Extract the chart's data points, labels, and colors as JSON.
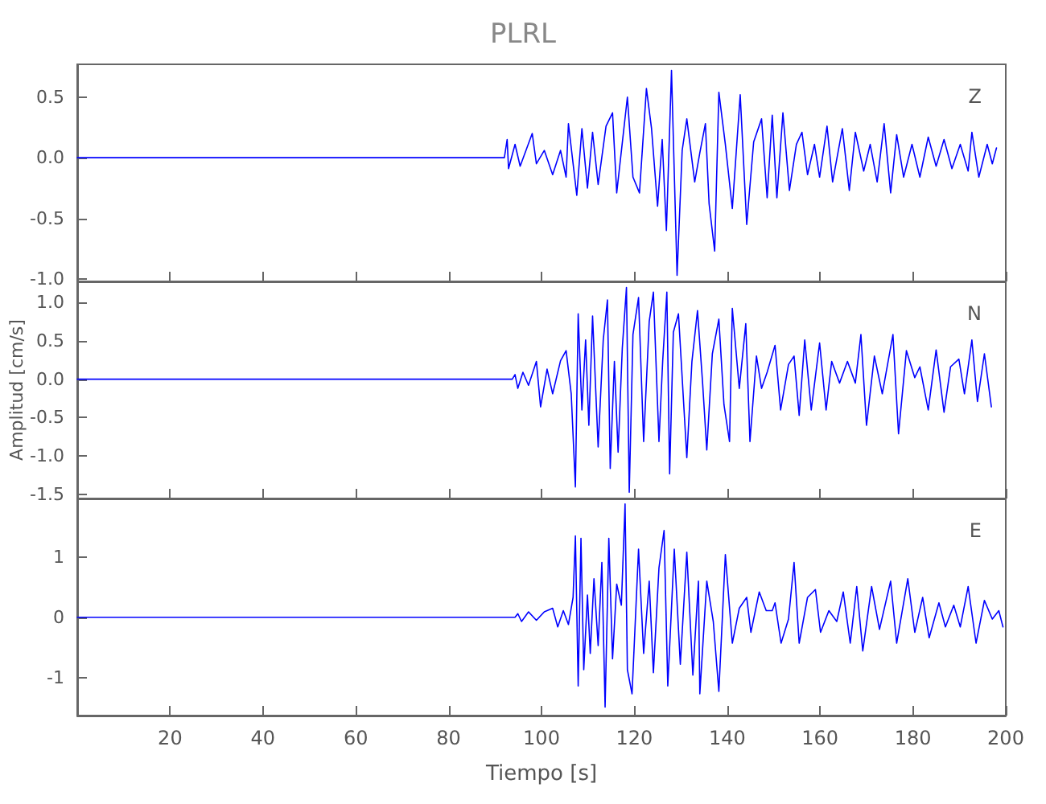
{
  "chart_data": [
    {
      "type": "line",
      "title": "PLRL",
      "annotations": [
        "Z"
      ],
      "marker": "none",
      "line_style": "solid",
      "grid": false,
      "tick_labels": "y",
      "xlim": [
        0,
        200
      ],
      "xticks": [
        20,
        40,
        60,
        80,
        100,
        120,
        140,
        160,
        180,
        200
      ],
      "ylim": [
        -1.02,
        0.77
      ],
      "yticks": [
        {
          "value": -1,
          "label": "-1.0"
        },
        -0.5,
        {
          "value": 0,
          "label": "0.0"
        },
        0.5
      ],
      "x": [
        0,
        20,
        40,
        60,
        80,
        92,
        92.6,
        92.9,
        94.3,
        95.4,
        98.0,
        98.9,
        100.6,
        102.4,
        104.1,
        105.3,
        105.8,
        107.6,
        108.7,
        109.9,
        111.0,
        112.2,
        113.9,
        115.3,
        116.2,
        118.5,
        119.7,
        121.1,
        122.6,
        123.7,
        125.0,
        126.0,
        126.9,
        128.0,
        129.2,
        130.3,
        131.3,
        133.0,
        134.1,
        135.3,
        136.1,
        137.3,
        138.2,
        139.6,
        141.1,
        142.8,
        144.2,
        145.7,
        147.4,
        148.6,
        149.7,
        150.7,
        152.0,
        153.4,
        154.9,
        156.1,
        157.3,
        158.8,
        159.9,
        161.5,
        162.7,
        164.8,
        166.3,
        167.6,
        169.4,
        170.8,
        172.3,
        173.8,
        175.2,
        176.5,
        178.0,
        179.8,
        181.5,
        183.3,
        185.0,
        186.7,
        188.4,
        190.2,
        191.9,
        192.7,
        194.2,
        196.0,
        197.1,
        198.0
      ],
      "series": [
        {
          "color": "#0000ff",
          "values": [
            0,
            0,
            0,
            0,
            0,
            0,
            0.15,
            -0.09,
            0.11,
            -0.07,
            0.2,
            -0.05,
            0.06,
            -0.14,
            0.06,
            -0.16,
            0.28,
            -0.31,
            0.24,
            -0.25,
            0.21,
            -0.22,
            0.26,
            0.37,
            -0.29,
            0.5,
            -0.16,
            -0.29,
            0.57,
            0.24,
            -0.4,
            0.15,
            -0.6,
            0.72,
            -0.97,
            0.06,
            0.32,
            -0.2,
            0.04,
            0.28,
            -0.38,
            -0.77,
            0.54,
            0.11,
            -0.42,
            0.52,
            -0.55,
            0.13,
            0.32,
            -0.33,
            0.35,
            -0.33,
            0.37,
            -0.27,
            0.11,
            0.21,
            -0.14,
            0.11,
            -0.16,
            0.26,
            -0.2,
            0.24,
            -0.27,
            0.21,
            -0.11,
            0.11,
            -0.2,
            0.28,
            -0.29,
            0.19,
            -0.16,
            0.11,
            -0.16,
            0.17,
            -0.07,
            0.15,
            -0.09,
            0.11,
            -0.11,
            0.21,
            -0.16,
            0.11,
            -0.05,
            0.08
          ]
        }
      ]
    },
    {
      "type": "line",
      "ylabel": "Amplitud [cm/s]",
      "annotations": [
        "N"
      ],
      "marker": "none",
      "line_style": "solid",
      "grid": false,
      "tick_labels": "y",
      "xlim": [
        0,
        200
      ],
      "xticks": [
        20,
        40,
        60,
        80,
        100,
        120,
        140,
        160,
        180,
        200
      ],
      "ylim": [
        -1.55,
        1.27
      ],
      "yticks": [
        -1.5,
        {
          "value": -1,
          "label": "-1.0"
        },
        -0.5,
        {
          "value": 0,
          "label": "0.0"
        },
        0.5,
        {
          "value": 1,
          "label": "1.0"
        }
      ],
      "x": [
        0,
        20,
        40,
        60,
        80,
        93.7,
        94.3,
        94.9,
        96.0,
        97.2,
        98.9,
        99.8,
        101.2,
        102.4,
        104.1,
        105.3,
        106.4,
        107.3,
        107.9,
        108.7,
        109.5,
        110.2,
        111.0,
        112.2,
        113.3,
        114.2,
        114.8,
        115.7,
        116.5,
        117.4,
        118.3,
        118.9,
        119.7,
        120.9,
        122.0,
        123.2,
        124.1,
        125.3,
        126.1,
        127.0,
        127.6,
        128.4,
        129.5,
        131.3,
        132.4,
        133.6,
        134.7,
        135.6,
        136.8,
        138.2,
        139.3,
        140.5,
        141.1,
        142.6,
        144.0,
        144.9,
        146.3,
        147.4,
        148.6,
        150.3,
        151.5,
        153.2,
        154.4,
        155.5,
        156.7,
        158.1,
        159.9,
        161.3,
        162.5,
        164.2,
        165.9,
        167.6,
        168.8,
        170.0,
        171.7,
        173.4,
        175.7,
        176.9,
        178.6,
        180.4,
        181.5,
        183.3,
        185.0,
        186.7,
        188.1,
        189.9,
        191.1,
        192.7,
        193.9,
        195.4,
        196.9
      ],
      "series": [
        {
          "color": "#0000ff",
          "values": [
            0,
            0,
            0,
            0,
            0,
            0,
            0.06,
            -0.12,
            0.09,
            -0.08,
            0.23,
            -0.36,
            0.13,
            -0.19,
            0.24,
            0.37,
            -0.19,
            -1.4,
            0.85,
            -0.4,
            0.51,
            -0.6,
            0.82,
            -0.88,
            0.51,
            1.03,
            -1.16,
            0.23,
            -0.95,
            0.4,
            1.19,
            -1.47,
            0.58,
            1.06,
            -0.81,
            0.75,
            1.13,
            -0.81,
            0.23,
            1.13,
            -1.23,
            0.61,
            0.85,
            -1.02,
            0.23,
            0.89,
            -0.05,
            -0.92,
            0.33,
            0.78,
            -0.33,
            -0.81,
            0.92,
            -0.12,
            0.72,
            -0.81,
            0.3,
            -0.12,
            0.09,
            0.44,
            -0.4,
            0.19,
            0.3,
            -0.47,
            0.51,
            -0.4,
            0.47,
            -0.4,
            0.23,
            -0.05,
            0.23,
            -0.05,
            0.58,
            -0.6,
            0.3,
            -0.19,
            0.58,
            -0.71,
            0.37,
            0.02,
            0.16,
            -0.4,
            0.38,
            -0.43,
            0.16,
            0.26,
            -0.19,
            0.51,
            -0.29,
            0.33,
            -0.36
          ]
        }
      ]
    },
    {
      "type": "line",
      "xlabel": "Tiempo [s]",
      "annotations": [
        "E"
      ],
      "marker": "none",
      "line_style": "solid",
      "grid": false,
      "xlim": [
        0,
        200
      ],
      "xticks": [
        20,
        40,
        60,
        80,
        100,
        120,
        140,
        160,
        180,
        200
      ],
      "ylim": [
        -1.63,
        1.97
      ],
      "yticks": [
        -1,
        0,
        1
      ],
      "x": [
        0,
        20,
        40,
        60,
        80,
        94.3,
        94.9,
        95.7,
        97.2,
        98.9,
        100.6,
        102.4,
        103.5,
        104.7,
        105.8,
        106.8,
        107.3,
        107.9,
        108.5,
        109.1,
        109.9,
        110.5,
        111.3,
        112.2,
        113.0,
        113.7,
        114.5,
        115.3,
        116.2,
        117.2,
        118.0,
        118.5,
        119.5,
        120.9,
        122.0,
        123.2,
        124.1,
        125.3,
        126.4,
        127.2,
        128.6,
        129.9,
        131.3,
        132.6,
        133.8,
        134.1,
        135.6,
        137.0,
        138.2,
        139.6,
        141.1,
        142.6,
        144.2,
        145.1,
        146.9,
        148.4,
        149.7,
        150.3,
        151.6,
        153.2,
        154.4,
        155.5,
        157.3,
        159.0,
        160.1,
        161.9,
        163.6,
        165.0,
        166.5,
        167.9,
        169.2,
        171.1,
        172.8,
        175.2,
        176.5,
        178.9,
        180.4,
        182.1,
        183.5,
        185.6,
        187.0,
        188.8,
        190.2,
        191.9,
        193.6,
        195.4,
        197.1,
        198.5,
        199.4
      ],
      "series": [
        {
          "color": "#0000ff",
          "values": [
            0,
            0,
            0,
            0,
            0,
            0,
            0.06,
            -0.07,
            0.09,
            -0.05,
            0.09,
            0.15,
            -0.16,
            0.11,
            -0.12,
            0.33,
            1.35,
            -1.14,
            1.31,
            -0.87,
            0.37,
            -0.6,
            0.64,
            -0.47,
            0.91,
            -1.49,
            1.31,
            -0.69,
            0.55,
            0.2,
            1.88,
            -0.87,
            -1.27,
            1.13,
            -0.6,
            0.6,
            -0.92,
            0.82,
            1.44,
            -1.14,
            1.13,
            -0.78,
            1.08,
            -0.96,
            0.6,
            -1.27,
            0.6,
            -0.07,
            -1.23,
            1.04,
            -0.43,
            0.15,
            0.33,
            -0.25,
            0.42,
            0.11,
            0.11,
            0.24,
            -0.43,
            -0.03,
            0.91,
            -0.43,
            0.33,
            0.46,
            -0.25,
            0.11,
            -0.07,
            0.42,
            -0.43,
            0.51,
            -0.56,
            0.51,
            -0.2,
            0.6,
            -0.43,
            0.64,
            -0.25,
            0.33,
            -0.34,
            0.24,
            -0.16,
            0.2,
            -0.16,
            0.51,
            -0.43,
            0.28,
            -0.03,
            0.11,
            -0.16
          ]
        }
      ]
    }
  ]
}
